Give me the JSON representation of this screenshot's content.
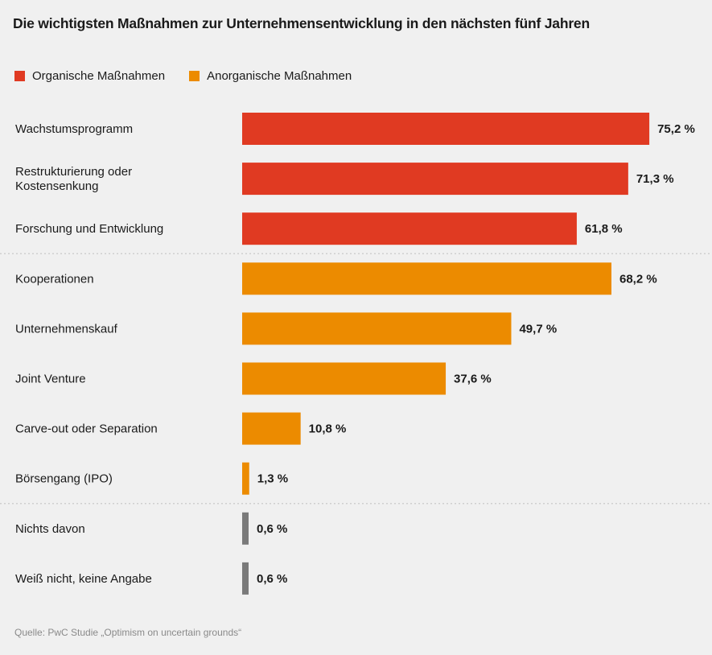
{
  "chart_data": {
    "type": "bar",
    "orientation": "horizontal",
    "title": "Die wichtigsten Maßnahmen zur Unternehmensentwicklung in den nächsten fünf Jahren",
    "legend": [
      {
        "name": "Organische Maßnahmen",
        "color": "#e03a22"
      },
      {
        "name": "Anorganische Maßnahmen",
        "color": "#ec8b00"
      }
    ],
    "categories": [
      "Wachstumsprogramm",
      "Restrukturierung oder\nKostensenkung",
      "Forschung und Entwicklung",
      "Kooperationen",
      "Unternehmenskauf",
      "Joint Venture",
      "Carve-out oder Separation",
      "Börsengang (IPO)",
      "Nichts davon",
      "Weiß nicht, keine Angabe"
    ],
    "values": [
      75.2,
      71.3,
      61.8,
      68.2,
      49.7,
      37.6,
      10.8,
      1.3,
      0.6,
      0.6
    ],
    "value_labels": [
      "75,2 %",
      "71,3 %",
      "61,8 %",
      "68,2 %",
      "49,7 %",
      "37,6 %",
      "10,8 %",
      "1,3 %",
      "0,6 %",
      "0,6 %"
    ],
    "groups": [
      "organic",
      "organic",
      "organic",
      "inorganic",
      "inorganic",
      "inorganic",
      "inorganic",
      "inorganic",
      "none",
      "none"
    ],
    "group_colors": {
      "organic": "#e03a22",
      "inorganic": "#ec8b00",
      "none": "#7a7a7a"
    },
    "xlim": [
      0,
      100
    ],
    "xlabel": "",
    "ylabel": "",
    "grid": false,
    "legend_position": "top-left",
    "source": "Quelle: PwC Studie „Optimism on uncertain grounds“"
  }
}
